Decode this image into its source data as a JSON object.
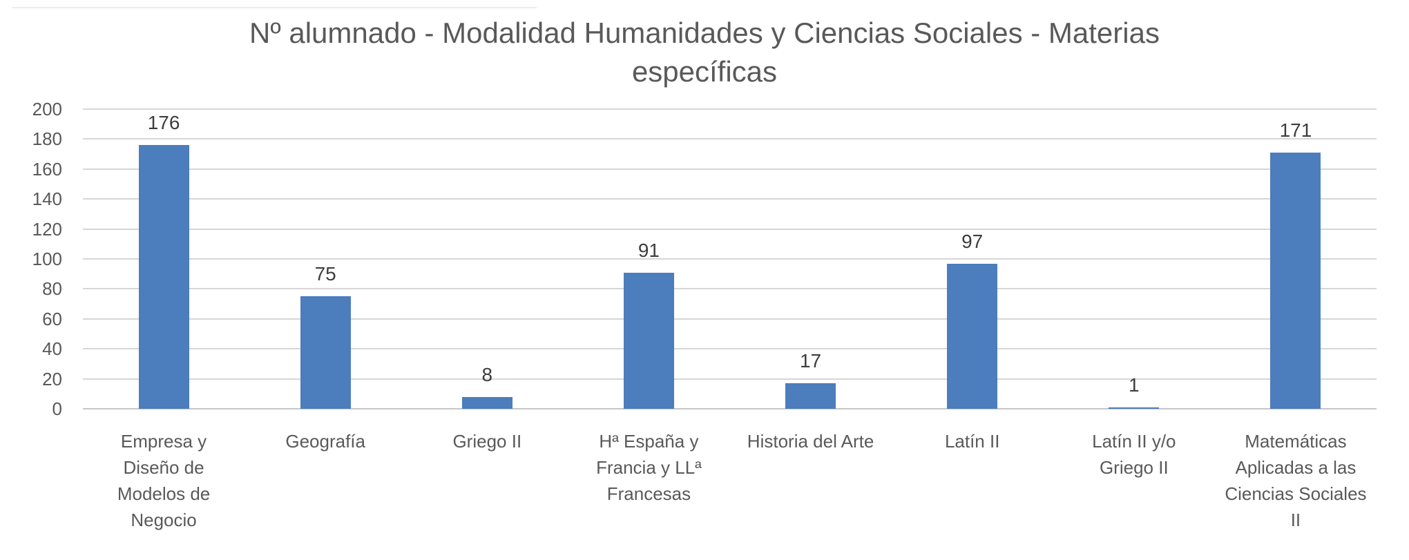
{
  "chart_data": {
    "type": "bar",
    "title": "Nº alumnado - Modalidad Humanidades y Ciencias Sociales - Materias específicas",
    "title_lines": [
      "Nº alumnado - Modalidad Humanidades y Ciencias Sociales - Materias",
      "específicas"
    ],
    "categories": [
      "Empresa y Diseño de Modelos de Negocio",
      "Geografía",
      "Griego II",
      "Hª España y Francia y LLª Francesas",
      "Historia del Arte",
      "Latín II",
      "Latín II y/o Griego II",
      "Matemáticas Aplicadas a las Ciencias Sociales II"
    ],
    "category_lines": [
      [
        "Empresa y",
        "Diseño de",
        "Modelos de",
        "Negocio"
      ],
      [
        "Geografía"
      ],
      [
        "Griego II"
      ],
      [
        "Hª España y",
        "Francia y LLª",
        "Francesas"
      ],
      [
        "Historia del Arte"
      ],
      [
        "Latín II"
      ],
      [
        "Latín II y/o",
        "Griego II"
      ],
      [
        "Matemáticas",
        "Aplicadas a las",
        "Ciencias Sociales",
        "II"
      ]
    ],
    "values": [
      176,
      75,
      8,
      91,
      17,
      97,
      1,
      171
    ],
    "xlabel": "",
    "ylabel": "",
    "ylim": [
      0,
      200
    ],
    "ytick_step": 20,
    "yticks": [
      200,
      180,
      160,
      140,
      120,
      100,
      80,
      60,
      40,
      20,
      0
    ],
    "grid": true,
    "legend": "none",
    "value_labels_shown": true,
    "colors": {
      "bar": "#4C7DBD",
      "gridline": "#D6D6D6",
      "axis_line": "#C6C6C6",
      "title_text": "#595959",
      "tick_text": "#595959",
      "value_text": "#3D3D3D"
    }
  }
}
